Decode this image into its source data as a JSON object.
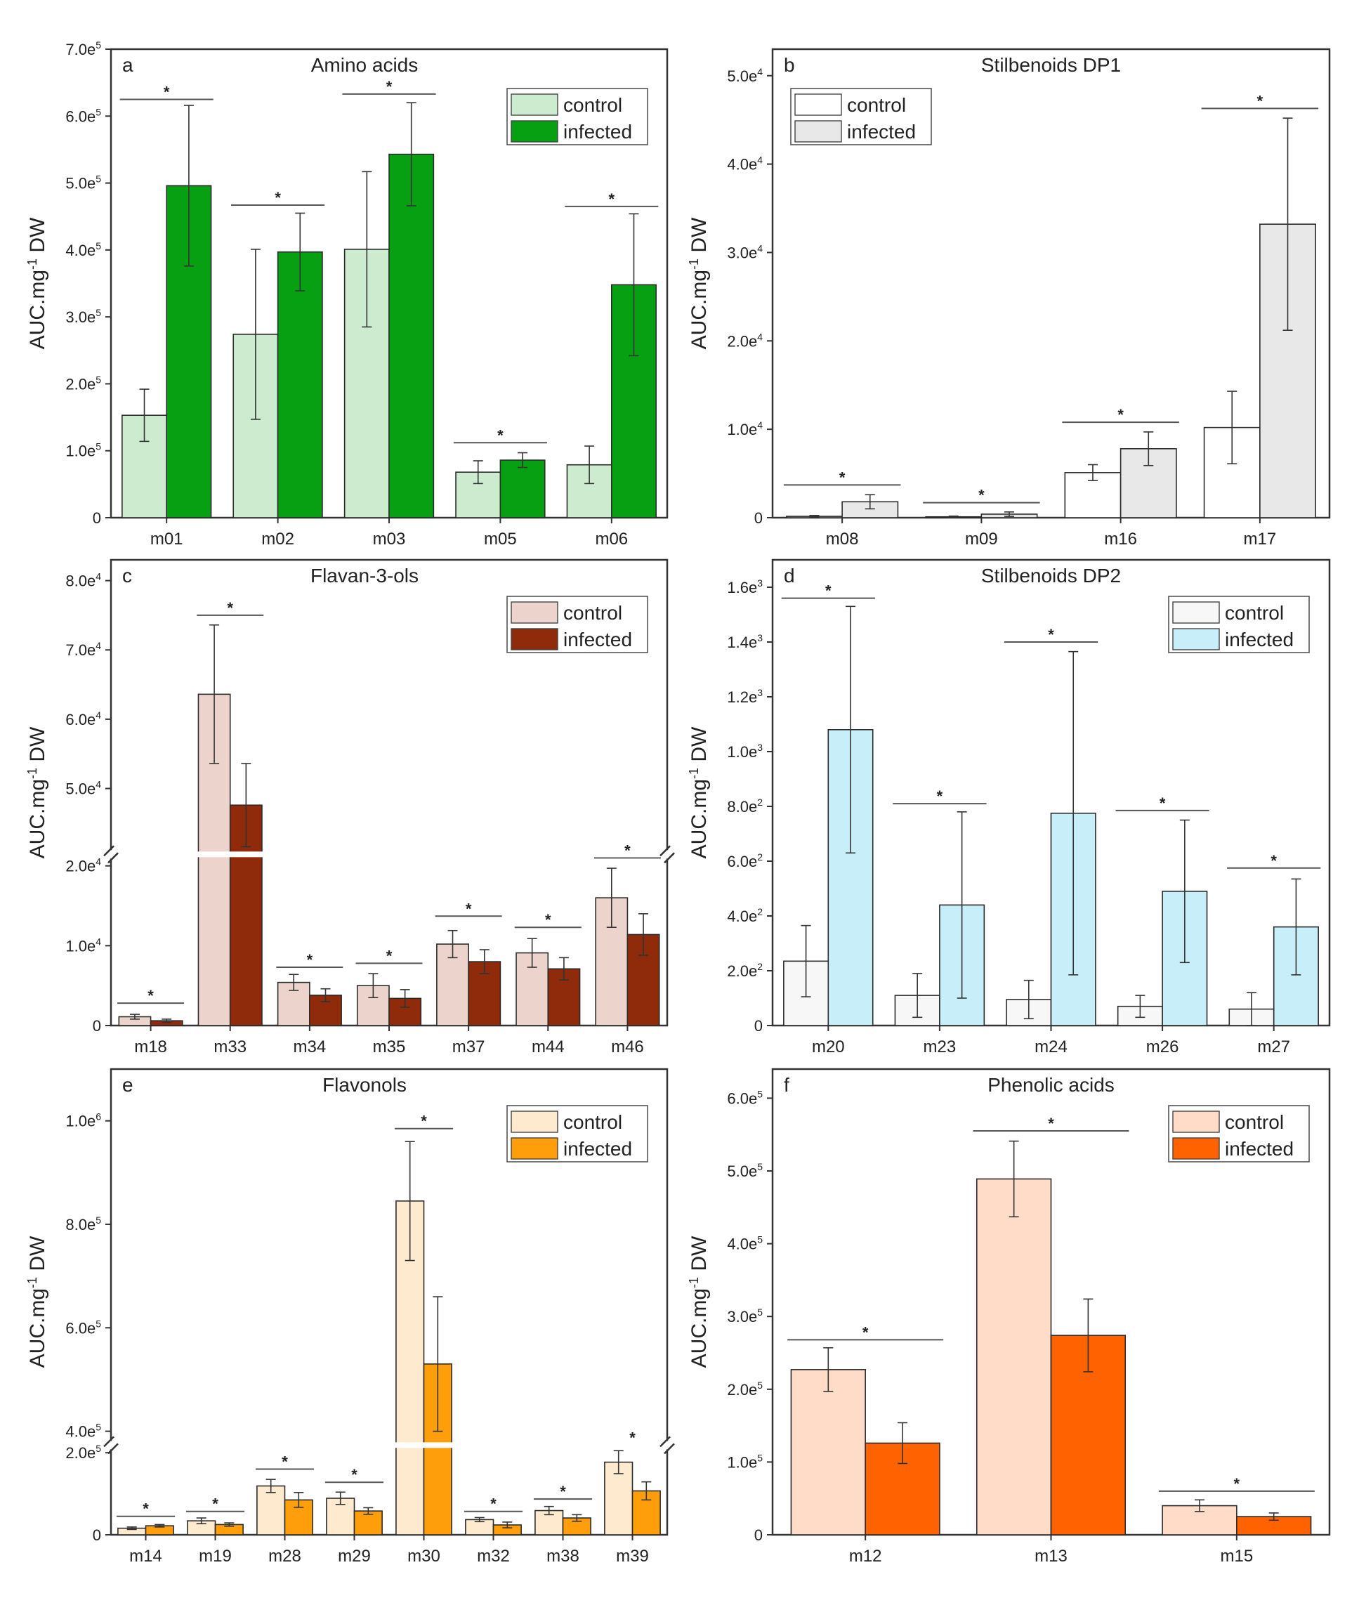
{
  "chart_data": [
    {
      "type": "bar",
      "panel": "a",
      "title": "Amino acids",
      "ylabel": "AUC.mg-1 DW",
      "ylabel_main": "AUC.mg",
      "ylabel_sup": "-1",
      "ylabel_tail": " DW",
      "ylim": [
        0,
        700000
      ],
      "yticks": [
        0,
        100000,
        200000,
        300000,
        400000,
        500000,
        600000,
        700000
      ],
      "yticklabels": [
        "0",
        "1.0e5",
        "2.0e5",
        "3.0e5",
        "4.0e5",
        "5.0e5",
        "6.0e5",
        "7.0e5"
      ],
      "categories": [
        "m01",
        "m02",
        "m03",
        "m05",
        "m06"
      ],
      "series": [
        {
          "name": "control",
          "color": "#cdeccf",
          "values": [
            153000,
            274000,
            401000,
            68000,
            79000
          ],
          "errors": [
            39000,
            127000,
            116000,
            17000,
            28000
          ]
        },
        {
          "name": "infected",
          "color": "#07a012",
          "values": [
            496000,
            397000,
            543000,
            86000,
            348000
          ],
          "errors": [
            120000,
            58000,
            77000,
            11000,
            106000
          ]
        }
      ],
      "significance": [
        {
          "category": "m01",
          "label": "*",
          "y": 625000
        },
        {
          "category": "m02",
          "label": "*",
          "y": 467000
        },
        {
          "category": "m03",
          "label": "*",
          "y": 633000
        },
        {
          "category": "m05",
          "label": "*",
          "y": 112000
        },
        {
          "category": "m06",
          "label": "*",
          "y": 465000
        }
      ],
      "legend_position": "top-right"
    },
    {
      "type": "bar",
      "panel": "b",
      "title": "Stilbenoids DP1",
      "ylabel": "AUC.mg-1 DW",
      "ylabel_main": "AUC.mg",
      "ylabel_sup": "-1",
      "ylabel_tail": " DW",
      "ylim": [
        0,
        53000
      ],
      "yticks": [
        0,
        10000,
        20000,
        30000,
        40000,
        50000
      ],
      "yticklabels": [
        "0",
        "1.0e4",
        "2.0e4",
        "3.0e4",
        "4.0e4",
        "5.0e4"
      ],
      "categories": [
        "m08",
        "m09",
        "m16",
        "m17"
      ],
      "series": [
        {
          "name": "control",
          "color": "#ffffff",
          "values": [
            150,
            100,
            5100,
            10200
          ],
          "errors": [
            100,
            80,
            900,
            4100
          ]
        },
        {
          "name": "infected",
          "color": "#e8e8e8",
          "values": [
            1800,
            400,
            7800,
            33200
          ],
          "errors": [
            800,
            250,
            1900,
            12000
          ]
        }
      ],
      "significance": [
        {
          "category": "m08",
          "label": "*",
          "y": 3700
        },
        {
          "category": "m09",
          "label": "*",
          "y": 1700
        },
        {
          "category": "m16",
          "label": "*",
          "y": 10800
        },
        {
          "category": "m17",
          "label": "*",
          "y": 46300
        }
      ],
      "legend_position": "top-left"
    },
    {
      "type": "bar",
      "panel": "c",
      "title": "Flavan-3-ols",
      "ylabel": "AUC.mg-1 DW",
      "ylabel_main": "AUC.mg",
      "ylabel_sup": "-1",
      "ylabel_tail": " DW",
      "broken_axis": {
        "lower_range": [
          0,
          21000
        ],
        "upper_range": [
          41000,
          83000
        ]
      },
      "yticks": [
        0,
        10000,
        20000,
        50000,
        60000,
        70000,
        80000
      ],
      "yticklabels": [
        "0",
        "1.0e4",
        "2.0e4",
        "5.0e4",
        "6.0e4",
        "7.0e4",
        "8.0e4"
      ],
      "categories": [
        "m18",
        "m33",
        "m34",
        "m35",
        "m37",
        "m44",
        "m46"
      ],
      "series": [
        {
          "name": "control",
          "color": "#ecd4cc",
          "values": [
            1100,
            63600,
            5400,
            5000,
            10200,
            9100,
            16000
          ],
          "errors": [
            300,
            10000,
            1000,
            1500,
            1700,
            1800,
            3700
          ]
        },
        {
          "name": "infected",
          "color": "#8f2a0b",
          "values": [
            600,
            47600,
            3800,
            3400,
            8000,
            7100,
            11400
          ],
          "errors": [
            200,
            6000,
            800,
            1100,
            1500,
            1400,
            2600
          ]
        }
      ],
      "significance": [
        {
          "category": "m18",
          "label": "*",
          "y": 2800
        },
        {
          "category": "m33",
          "label": "*",
          "y": 75000
        },
        {
          "category": "m34",
          "label": "*",
          "y": 7300
        },
        {
          "category": "m35",
          "label": "*",
          "y": 7800
        },
        {
          "category": "m37",
          "label": "*",
          "y": 13700
        },
        {
          "category": "m44",
          "label": "*",
          "y": 12300
        },
        {
          "category": "m46",
          "label": "*",
          "y": 21000
        }
      ],
      "legend_position": "top-right"
    },
    {
      "type": "bar",
      "panel": "d",
      "title": "Stilbenoids DP2",
      "ylabel": "AUC.mg-1 DW",
      "ylabel_main": "AUC.mg",
      "ylabel_sup": "-1",
      "ylabel_tail": " DW",
      "ylim": [
        0,
        1700
      ],
      "yticks": [
        0,
        200,
        400,
        600,
        800,
        1000,
        1200,
        1400,
        1600
      ],
      "yticklabels": [
        "0",
        "2.0e2",
        "4.0e2",
        "6.0e2",
        "8.0e2",
        "1.0e3",
        "1.2e3",
        "1.4e3",
        "1.6e3"
      ],
      "categories": [
        "m20",
        "m23",
        "m24",
        "m26",
        "m27"
      ],
      "series": [
        {
          "name": "control",
          "color": "#f7f7f7",
          "values": [
            235,
            110,
            95,
            70,
            60
          ],
          "errors": [
            130,
            80,
            70,
            40,
            60
          ]
        },
        {
          "name": "infected",
          "color": "#c7eef9",
          "values": [
            1080,
            440,
            775,
            490,
            360
          ],
          "errors": [
            450,
            340,
            590,
            260,
            175
          ]
        }
      ],
      "significance": [
        {
          "category": "m20",
          "label": "*",
          "y": 1560
        },
        {
          "category": "m23",
          "label": "*",
          "y": 810
        },
        {
          "category": "m24",
          "label": "*",
          "y": 1400
        },
        {
          "category": "m26",
          "label": "*",
          "y": 785
        },
        {
          "category": "m27",
          "label": "*",
          "y": 575
        }
      ],
      "legend_position": "top-right"
    },
    {
      "type": "bar",
      "panel": "e",
      "title": "Flavonols",
      "ylabel": "AUC.mg-1 DW",
      "ylabel_main": "AUC.mg",
      "ylabel_sup": "-1",
      "ylabel_tail": " DW",
      "broken_axis": {
        "lower_range": [
          0,
          210000
        ],
        "upper_range": [
          380000,
          1100000
        ]
      },
      "yticks": [
        0,
        200000,
        400000,
        600000,
        800000,
        1000000
      ],
      "yticklabels": [
        "0",
        "2.0e5",
        "4.0e5",
        "6.0e5",
        "8.0e5",
        "1.0e6"
      ],
      "categories": [
        "m14",
        "m19",
        "m28",
        "m29",
        "m30",
        "m32",
        "m38",
        "m39"
      ],
      "series": [
        {
          "name": "control",
          "color": "#feebcf",
          "values": [
            16000,
            34000,
            119000,
            89000,
            845000,
            37000,
            59000,
            177000
          ],
          "errors": [
            3000,
            7000,
            16000,
            15000,
            115000,
            5000,
            10000,
            28000
          ]
        },
        {
          "name": "infected",
          "color": "#ff9e0b",
          "values": [
            22000,
            25000,
            85000,
            58000,
            530000,
            24000,
            41000,
            107000
          ],
          "errors": [
            3000,
            4000,
            18000,
            8000,
            130000,
            7000,
            8000,
            22000
          ]
        }
      ],
      "significance": [
        {
          "category": "m14",
          "label": "*",
          "y": 45000
        },
        {
          "category": "m19",
          "label": "*",
          "y": 57000
        },
        {
          "category": "m28",
          "label": "*",
          "y": 160000
        },
        {
          "category": "m29",
          "label": "*",
          "y": 128000
        },
        {
          "category": "m30",
          "label": "*",
          "y": 985000
        },
        {
          "category": "m32",
          "label": "*",
          "y": 57000
        },
        {
          "category": "m38",
          "label": "*",
          "y": 87000
        },
        {
          "category": "m39",
          "label": "*",
          "y": 224000
        }
      ],
      "legend_position": "top-right"
    },
    {
      "type": "bar",
      "panel": "f",
      "title": "Phenolic acids",
      "ylabel": "AUC.mg-1 DW",
      "ylabel_main": "AUC.mg",
      "ylabel_sup": "-1",
      "ylabel_tail": " DW",
      "ylim": [
        0,
        640000
      ],
      "yticks": [
        0,
        100000,
        200000,
        300000,
        400000,
        500000,
        600000
      ],
      "yticklabels": [
        "0",
        "1.0e5",
        "2.0e5",
        "3.0e5",
        "4.0e5",
        "5.0e5",
        "6.0e5"
      ],
      "categories": [
        "m12",
        "m13",
        "m15"
      ],
      "series": [
        {
          "name": "control",
          "color": "#fedcc8",
          "values": [
            227000,
            489000,
            40000
          ],
          "errors": [
            30000,
            52000,
            8000
          ]
        },
        {
          "name": "infected",
          "color": "#ff6200",
          "values": [
            126000,
            274000,
            25000
          ],
          "errors": [
            28000,
            50000,
            5000
          ]
        }
      ],
      "significance": [
        {
          "category": "m12",
          "label": "*",
          "y": 268000
        },
        {
          "category": "m13",
          "label": "*",
          "y": 555000
        },
        {
          "category": "m15",
          "label": "*",
          "y": 60000
        }
      ],
      "legend_position": "top-right"
    }
  ]
}
